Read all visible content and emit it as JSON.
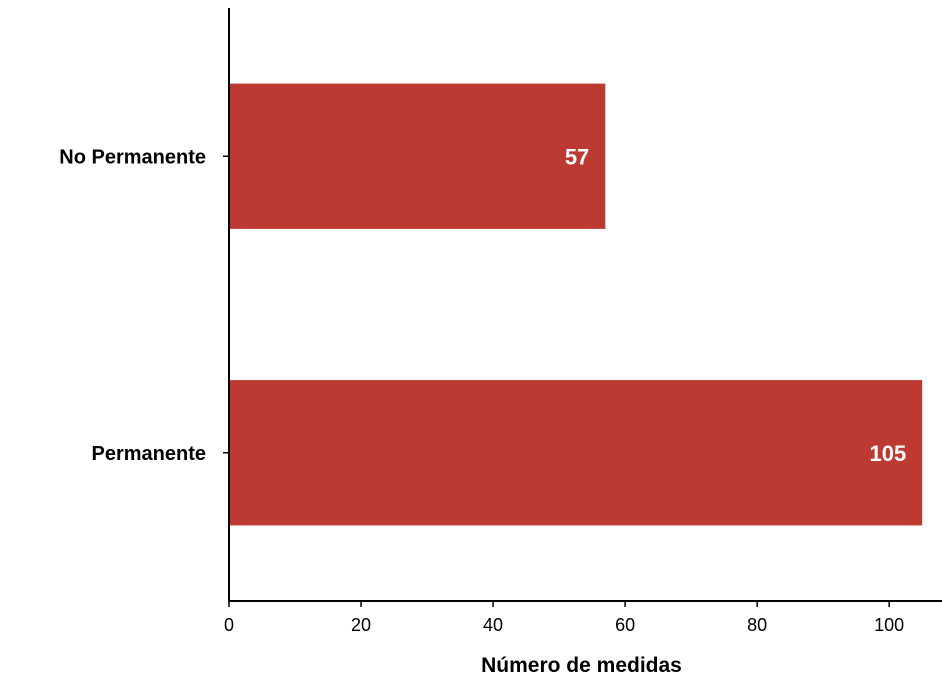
{
  "chart_data": {
    "type": "bar",
    "orientation": "horizontal",
    "categories": [
      "No Permanente",
      "Permanente"
    ],
    "values": [
      57,
      105
    ],
    "data_labels": [
      "57",
      "105"
    ],
    "title": "",
    "xlabel": "Número de medidas",
    "ylabel": "",
    "xlim": [
      0,
      108
    ],
    "xticks": [
      0,
      20,
      40,
      60,
      80,
      100
    ],
    "xtick_labels": [
      "0",
      "20",
      "40",
      "60",
      "80",
      "100"
    ],
    "grid": false,
    "legend": "none",
    "bar_color": "#bd3a33"
  }
}
